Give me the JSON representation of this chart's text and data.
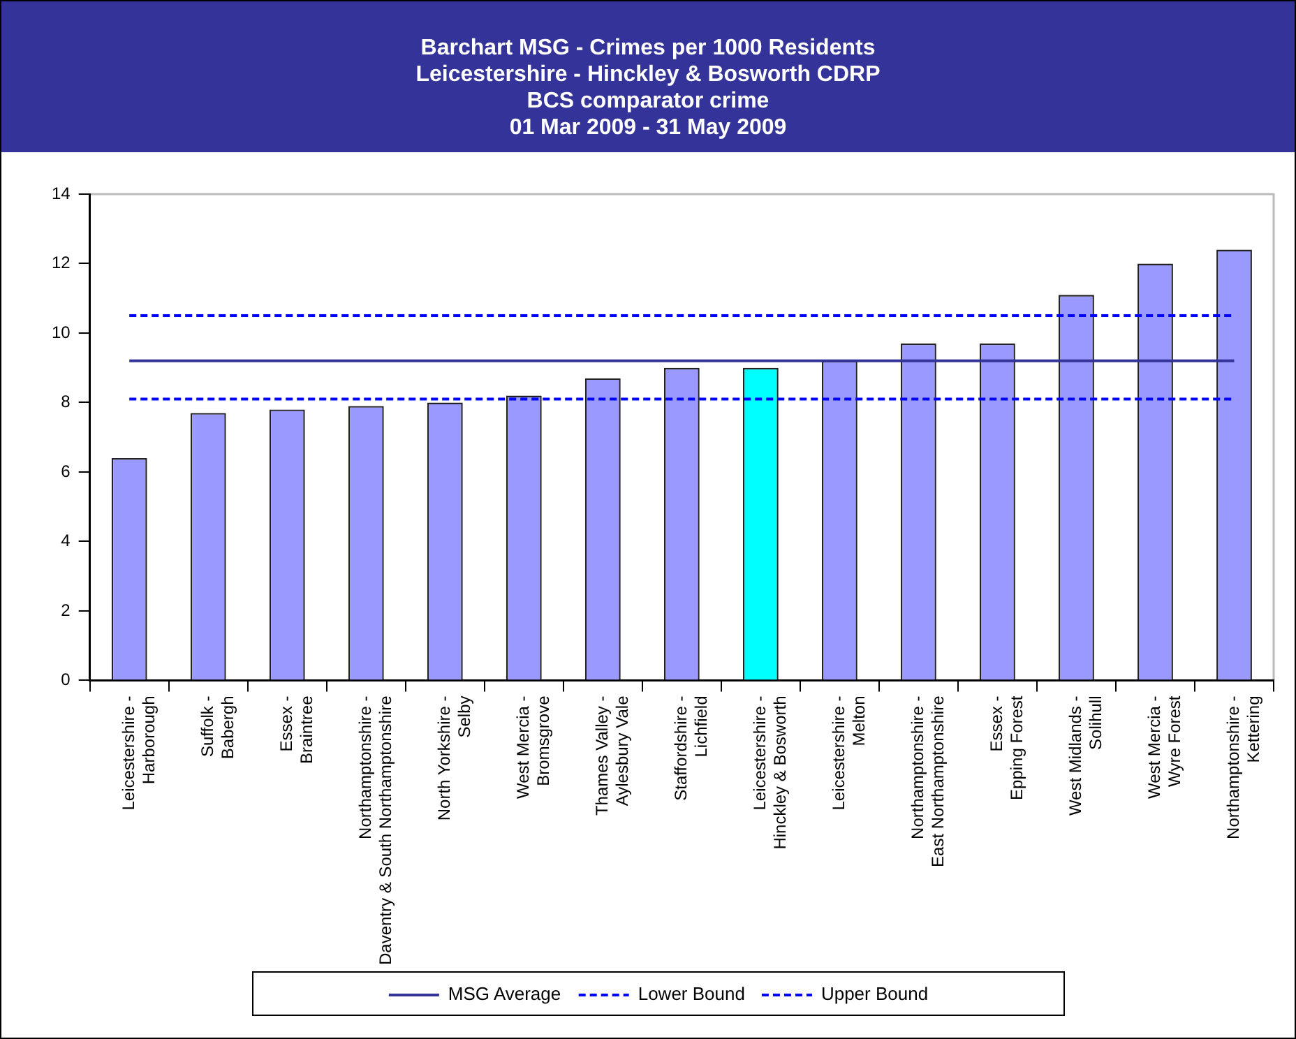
{
  "chart_data": {
    "type": "bar",
    "title": "Barchart MSG - Crimes per 1000 Residents",
    "subtitle": "Leicestershire - Hinckley & Bosworth CDRP\nBCS comparator crime\n01 Mar 2009 - 31 May 2009",
    "categories": [
      "Leicestershire - Harborough",
      "Suffolk - Babergh",
      "Essex - Braintree",
      "Northamptonshire - Daventry & South Northamptonshire",
      "North Yorkshire - Selby",
      "West Mercia - Bromsgrove",
      "Thames Valley - Aylesbury Vale",
      "Staffordshire - Lichfield",
      "Leicestershire - Hinckley & Bosworth",
      "Leicestershire - Melton",
      "Northamptonshire - East Northamptonshire",
      "Essex - Epping Forest",
      "West Midlands - Solihull",
      "West Mercia - Wyre Forest",
      "Northamptonshire - Kettering"
    ],
    "series": [
      {
        "values": [
          6.4,
          7.7,
          7.8,
          7.9,
          8.0,
          8.2,
          8.7,
          9.0,
          9.0,
          9.2,
          9.7,
          9.7,
          11.1,
          12.0,
          12.4
        ],
        "colors": [
          "#9999ff",
          "#9999ff",
          "#9999ff",
          "#9999ff",
          "#9999ff",
          "#9999ff",
          "#9999ff",
          "#9999ff",
          "#00ffff",
          "#9999ff",
          "#9999ff",
          "#9999ff",
          "#9999ff",
          "#9999ff",
          "#9999ff"
        ]
      },
      {
        "type": "line",
        "name": "MSG Average",
        "color": "#333399",
        "line_style": "solid",
        "values": [
          9.2,
          9.2,
          9.2,
          9.2,
          9.2,
          9.2,
          9.2,
          9.2,
          9.2,
          9.2,
          9.2,
          9.2,
          9.2,
          9.2,
          9.2
        ]
      },
      {
        "type": "line",
        "name": "Lower Bound",
        "color": "#0000ff",
        "line_style": "dashed",
        "values": [
          8.1,
          8.1,
          8.1,
          8.1,
          8.1,
          8.1,
          8.1,
          8.1,
          8.1,
          8.1,
          8.1,
          8.1,
          8.1,
          8.1,
          8.1
        ]
      },
      {
        "type": "line",
        "name": "Upper Bound",
        "color": "#0000ff",
        "line_style": "dashed",
        "values": [
          10.5,
          10.5,
          10.5,
          10.5,
          10.5,
          10.5,
          10.5,
          10.5,
          10.5,
          10.5,
          10.5,
          10.5,
          10.5,
          10.5,
          10.5
        ]
      }
    ],
    "ylim": [
      0,
      14
    ],
    "yticks": [
      0,
      2,
      4,
      6,
      8,
      10,
      12,
      14
    ],
    "legend": "bottom",
    "marker": "none"
  }
}
